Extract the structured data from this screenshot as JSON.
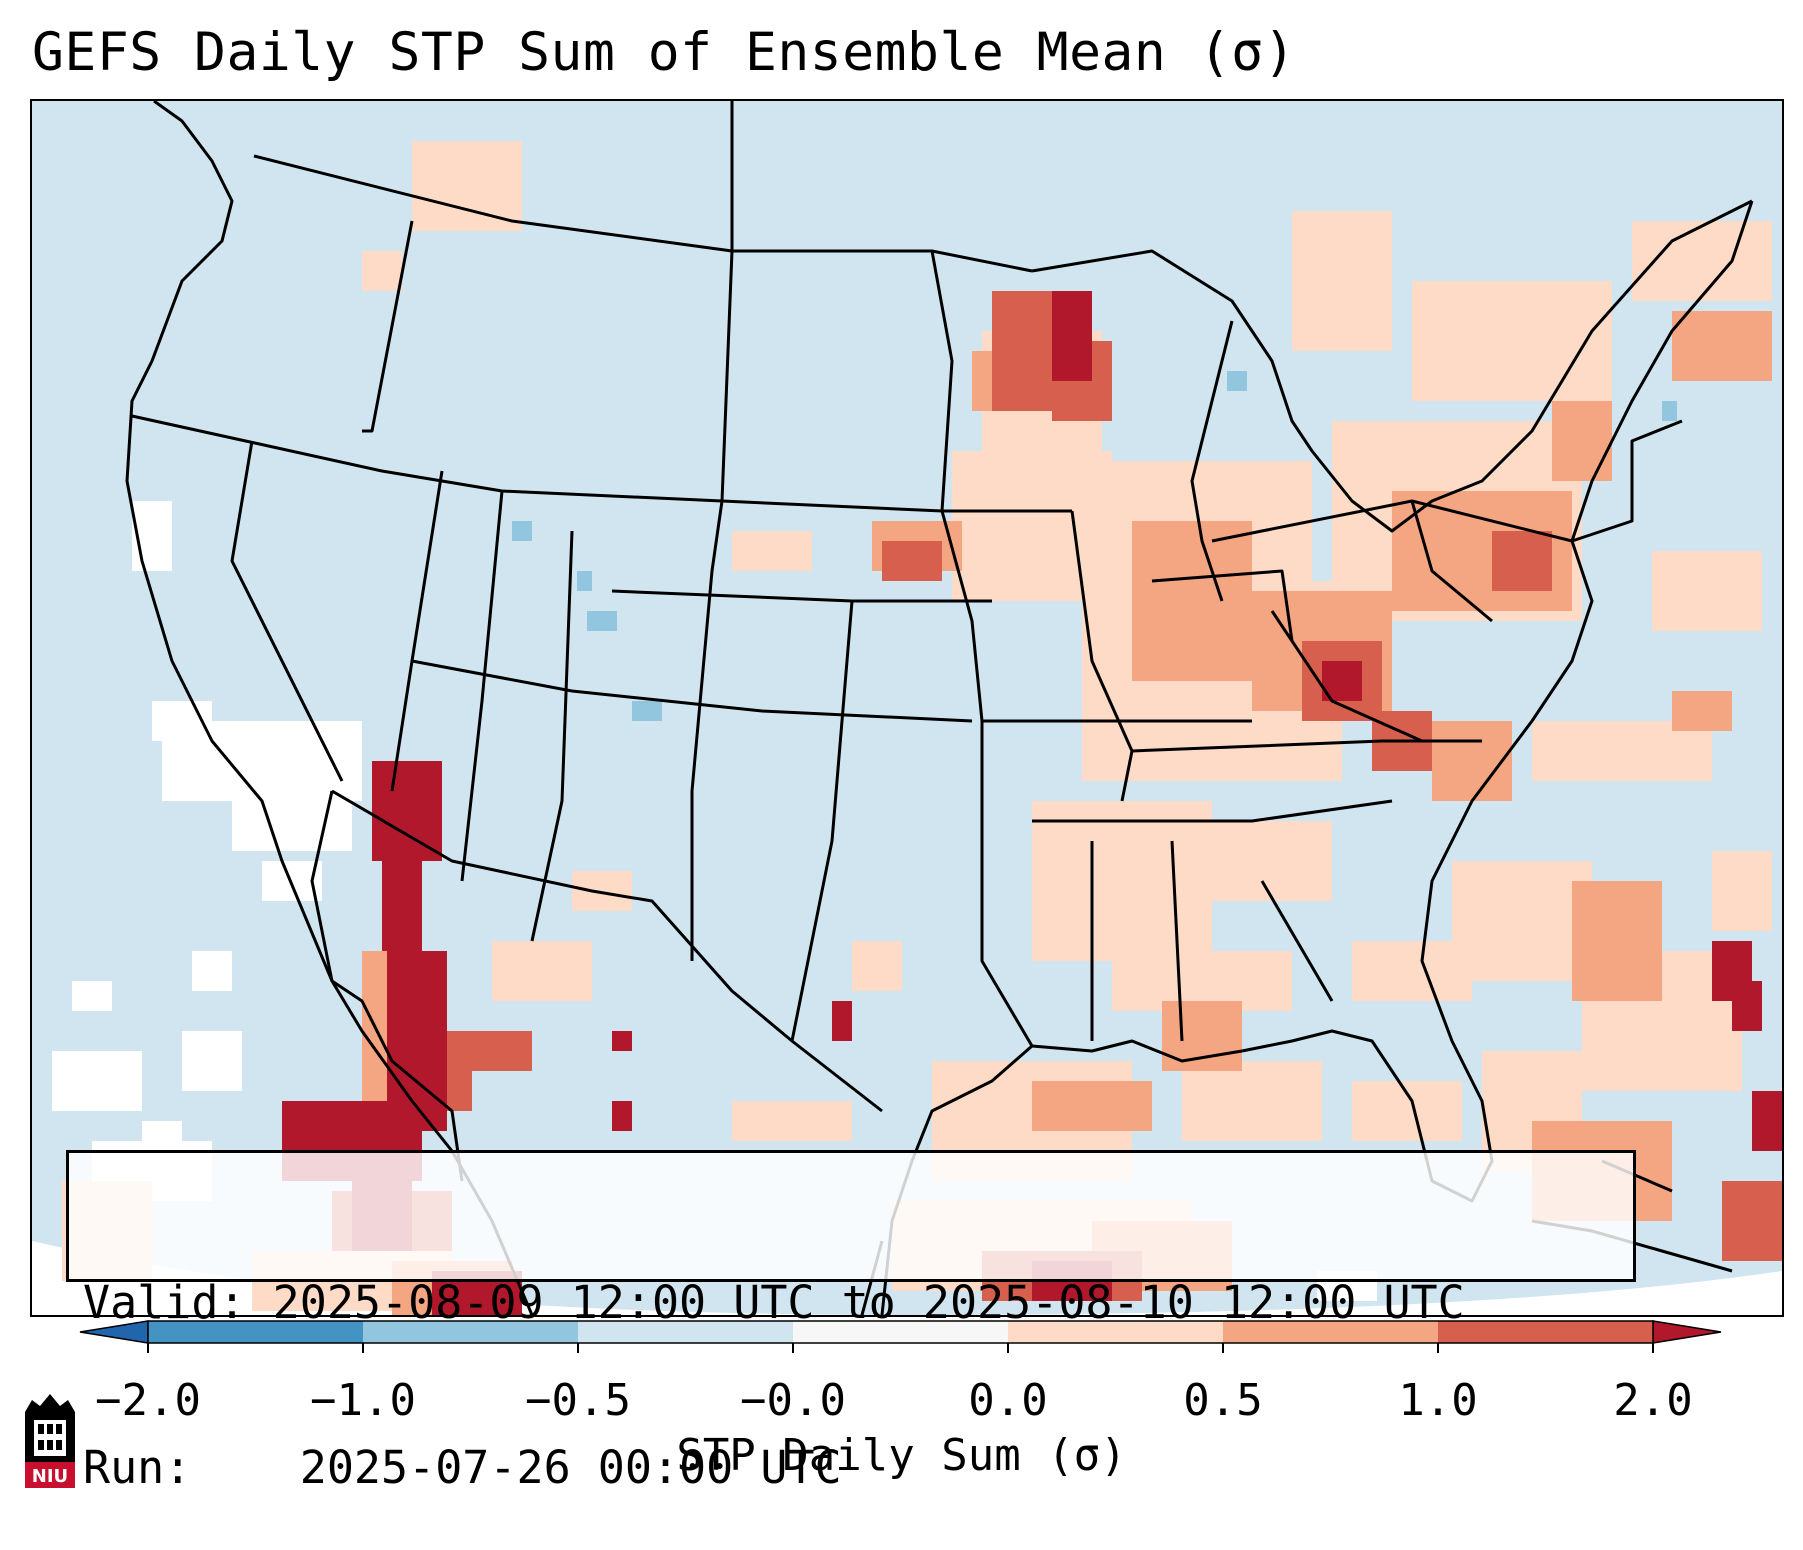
{
  "title": "GEFS Daily STP Sum of Ensemble Mean (σ)",
  "info": {
    "valid_label": "Valid:",
    "valid_value": "2025-08-09 12:00 UTC to 2025-08-10 12:00 UTC",
    "run_label": "Run:",
    "run_value": "2025-07-26 00:00 UTC"
  },
  "colorbar": {
    "label": "STP Daily Sum (σ)",
    "tick_labels": [
      "−2.0",
      "−1.0",
      "−0.5",
      "−0.0",
      "0.0",
      "0.5",
      "1.0",
      "2.0"
    ],
    "bins": [
      {
        "from": -2.0,
        "to": -1.0,
        "color": "#4393c3"
      },
      {
        "from": -1.0,
        "to": -0.5,
        "color": "#92c5de"
      },
      {
        "from": -0.5,
        "to": -0.0,
        "color": "#d1e5f0"
      },
      {
        "from": -0.0,
        "to": 0.0,
        "color": "#f7f7f7"
      },
      {
        "from": 0.0,
        "to": 0.5,
        "color": "#fddbc7"
      },
      {
        "from": 0.5,
        "to": 1.0,
        "color": "#f4a582"
      },
      {
        "from": 1.0,
        "to": 2.0,
        "color": "#d6604d"
      }
    ],
    "under_color": "#2166ac",
    "over_color": "#b2182b"
  },
  "logo": {
    "text": "NIU"
  },
  "colors": {
    "land_background": "#d1e5f0",
    "ocean_background": "#d1e5f0",
    "outside_domain": "#ffffff"
  }
}
